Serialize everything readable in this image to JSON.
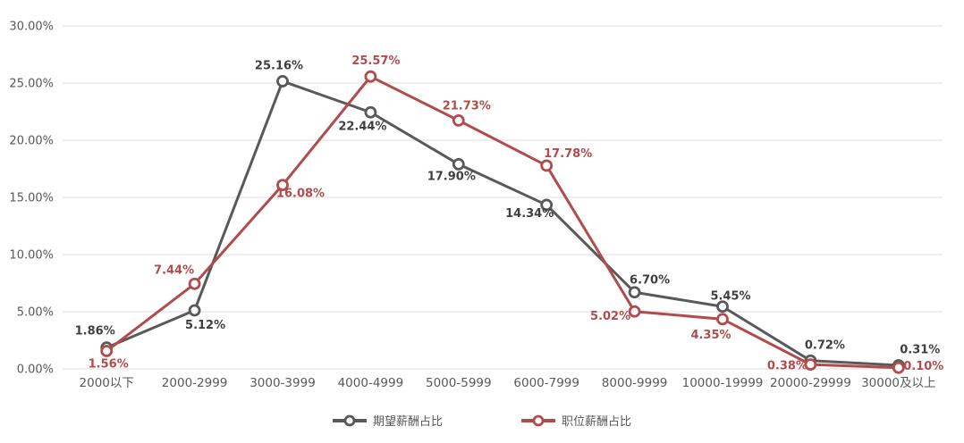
{
  "chart_data": {
    "type": "line",
    "title": "",
    "categories": [
      "2000以下",
      "2000-2999",
      "3000-3999",
      "4000-4999",
      "5000-5999",
      "6000-7999",
      "8000-9999",
      "10000-19999",
      "20000-29999",
      "30000及以上"
    ],
    "series": [
      {
        "name": "期望薪酬占比",
        "color": "#595959",
        "label_color": "#3f3f3f",
        "values": [
          1.86,
          5.12,
          25.16,
          22.44,
          17.9,
          14.34,
          6.7,
          5.45,
          0.72,
          0.31
        ],
        "labels": [
          "1.86%",
          "5.12%",
          "25.16%",
          "22.44%",
          "17.90%",
          "14.34%",
          "6.70%",
          "5.45%",
          "0.72%",
          "0.31%"
        ]
      },
      {
        "name": "职位薪酬占比",
        "color": "#b24c4c",
        "label_color": "#b24c4c",
        "values": [
          1.56,
          7.44,
          16.08,
          25.57,
          21.73,
          17.78,
          5.02,
          4.35,
          0.38,
          0.1
        ],
        "labels": [
          "1.56%",
          "7.44%",
          "16.08%",
          "25.57%",
          "21.73%",
          "17.78%",
          "5.02%",
          "4.35%",
          "0.38%",
          "0.10%"
        ]
      }
    ],
    "ylim": [
      0,
      30
    ],
    "ytick_step": 5,
    "ytick_labels": [
      "0.00%",
      "5.00%",
      "10.00%",
      "15.00%",
      "20.00%",
      "25.00%",
      "30.00%"
    ],
    "xlabel": "",
    "ylabel": "",
    "grid": true,
    "grid_color": "#dcdcdc",
    "axis_label_color": "#595959",
    "background": "#ffffff",
    "legend_position": "bottom",
    "data_labels": true,
    "marker": "circle-open"
  }
}
